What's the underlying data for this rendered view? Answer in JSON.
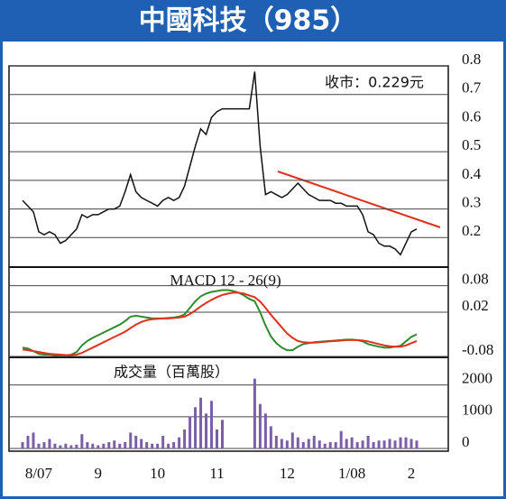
{
  "chart_data": [
    {
      "type": "line",
      "title": "中國科技（985）",
      "annotation": "收市：0.229元",
      "categories": [
        null,
        null,
        null,
        "8/07",
        null,
        null,
        null,
        null,
        null,
        null,
        null,
        null,
        null,
        null,
        "9",
        null,
        null,
        null,
        null,
        null,
        null,
        null,
        null,
        null,
        null,
        "10",
        null,
        null,
        null,
        null,
        null,
        null,
        null,
        null,
        null,
        null,
        "11",
        null,
        null,
        null,
        null,
        null,
        null,
        null,
        null,
        null,
        null,
        null,
        null,
        "12",
        null,
        null,
        null,
        null,
        null,
        null,
        null,
        null,
        null,
        null,
        null,
        "1/08",
        null,
        null,
        null,
        null,
        null,
        null,
        null,
        null,
        null,
        null,
        "2",
        null
      ],
      "values": [
        0.33,
        0.31,
        0.29,
        0.22,
        0.21,
        0.22,
        0.21,
        0.18,
        0.19,
        0.21,
        0.23,
        0.28,
        0.27,
        0.28,
        0.28,
        0.29,
        0.3,
        0.3,
        0.31,
        0.36,
        0.42,
        0.36,
        0.34,
        0.33,
        0.32,
        0.31,
        0.33,
        0.34,
        0.33,
        0.34,
        0.38,
        0.45,
        0.52,
        0.58,
        0.56,
        0.62,
        0.64,
        0.65,
        0.65,
        0.65,
        0.65,
        0.65,
        0.65,
        0.78,
        0.52,
        0.35,
        0.36,
        0.35,
        0.34,
        0.35,
        0.37,
        0.39,
        0.37,
        0.35,
        0.34,
        0.33,
        0.33,
        0.33,
        0.32,
        0.32,
        0.31,
        0.31,
        0.31,
        0.28,
        0.22,
        0.21,
        0.18,
        0.17,
        0.17,
        0.16,
        0.14,
        0.18,
        0.22,
        0.23
      ],
      "color": "#111111",
      "ylim": [
        0.1,
        0.8
      ],
      "yticks": [
        0.8,
        0.7,
        0.6,
        0.5,
        0.4,
        0.3,
        0.2
      ],
      "grid": true
    },
    {
      "type": "line",
      "title": "MACD 12 - 26(9)",
      "series": [
        {
          "color": "#2e8b2e",
          "values": [
            -0.06,
            -0.062,
            -0.068,
            -0.074,
            -0.076,
            -0.076,
            -0.077,
            -0.078,
            -0.078,
            -0.076,
            -0.07,
            -0.055,
            -0.045,
            -0.038,
            -0.032,
            -0.026,
            -0.02,
            -0.014,
            -0.008,
            0.0,
            0.01,
            0.012,
            0.01,
            0.008,
            0.006,
            0.006,
            0.006,
            0.007,
            0.008,
            0.01,
            0.015,
            0.03,
            0.045,
            0.056,
            0.062,
            0.066,
            0.068,
            0.07,
            0.07,
            0.068,
            0.064,
            0.058,
            0.05,
            0.045,
            0.02,
            -0.01,
            -0.035,
            -0.05,
            -0.06,
            -0.066,
            -0.066,
            -0.058,
            -0.052,
            -0.05,
            -0.048,
            -0.047,
            -0.046,
            -0.045,
            -0.044,
            -0.043,
            -0.042,
            -0.042,
            -0.043,
            -0.046,
            -0.052,
            -0.055,
            -0.058,
            -0.06,
            -0.06,
            -0.058,
            -0.056,
            -0.046,
            -0.036,
            -0.03
          ]
        },
        {
          "color": "#e0301e",
          "values": [
            -0.064,
            -0.066,
            -0.068,
            -0.07,
            -0.072,
            -0.074,
            -0.075,
            -0.076,
            -0.077,
            -0.077,
            -0.076,
            -0.072,
            -0.066,
            -0.06,
            -0.054,
            -0.048,
            -0.042,
            -0.036,
            -0.03,
            -0.024,
            -0.016,
            -0.008,
            -0.002,
            0.002,
            0.004,
            0.005,
            0.006,
            0.006,
            0.007,
            0.008,
            0.01,
            0.016,
            0.024,
            0.033,
            0.041,
            0.048,
            0.054,
            0.059,
            0.062,
            0.064,
            0.064,
            0.062,
            0.058,
            0.054,
            0.044,
            0.03,
            0.014,
            0.0,
            -0.014,
            -0.028,
            -0.038,
            -0.045,
            -0.048,
            -0.049,
            -0.049,
            -0.048,
            -0.047,
            -0.046,
            -0.045,
            -0.044,
            -0.043,
            -0.043,
            -0.043,
            -0.044,
            -0.046,
            -0.049,
            -0.052,
            -0.055,
            -0.057,
            -0.058,
            -0.058,
            -0.055,
            -0.05,
            -0.045
          ]
        }
      ],
      "ylim": [
        -0.08,
        0.12
      ],
      "yticks": [
        0.08,
        0.02,
        -0.08
      ],
      "grid": true
    },
    {
      "type": "bar",
      "title": "成交量（百萬股）",
      "values": [
        200,
        400,
        500,
        150,
        200,
        300,
        150,
        100,
        150,
        100,
        120,
        450,
        200,
        150,
        100,
        150,
        200,
        250,
        150,
        200,
        500,
        400,
        300,
        200,
        150,
        150,
        400,
        150,
        200,
        350,
        600,
        1000,
        1300,
        1600,
        1100,
        1500,
        600,
        900,
        0,
        0,
        0,
        0,
        0,
        2200,
        1400,
        1100,
        700,
        400,
        300,
        250,
        500,
        350,
        200,
        300,
        400,
        250,
        150,
        200,
        200,
        550,
        300,
        350,
        200,
        250,
        400,
        200,
        250,
        250,
        300,
        250,
        350,
        350,
        300,
        250
      ],
      "color": "#7b5ea7",
      "ylim": [
        0,
        2900
      ],
      "yticks": [
        2000,
        1000,
        0
      ],
      "grid": true
    }
  ]
}
